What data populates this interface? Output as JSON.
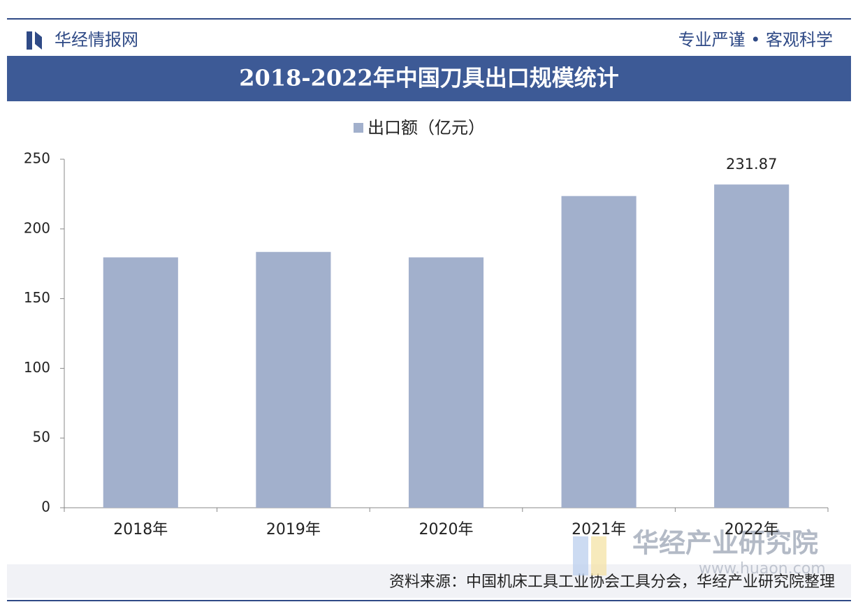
{
  "header": {
    "brand": "华经情报网",
    "slogan": "专业严谨 • 客观科学"
  },
  "chart_data": {
    "type": "bar",
    "title": "2018-2022年中国刀具出口规模统计",
    "categories": [
      "2018年",
      "2019年",
      "2020年",
      "2021年",
      "2022年"
    ],
    "series": [
      {
        "name": "出口额（亿元）",
        "color": "#a2b0cc",
        "values": [
          179.6,
          183.5,
          179.6,
          223.6,
          231.87
        ]
      }
    ],
    "value_labels": [
      null,
      null,
      null,
      null,
      "231.87"
    ],
    "ylim": [
      0,
      250
    ],
    "yticks": [
      0,
      50,
      100,
      150,
      200,
      250
    ],
    "grid": false,
    "legend": "top"
  },
  "footer": {
    "source": "资料来源：中国机床工具工业协会工具分会，华经产业研究院整理",
    "watermark": "华经产业研究院",
    "watermark_url": "www.huaon.com"
  }
}
